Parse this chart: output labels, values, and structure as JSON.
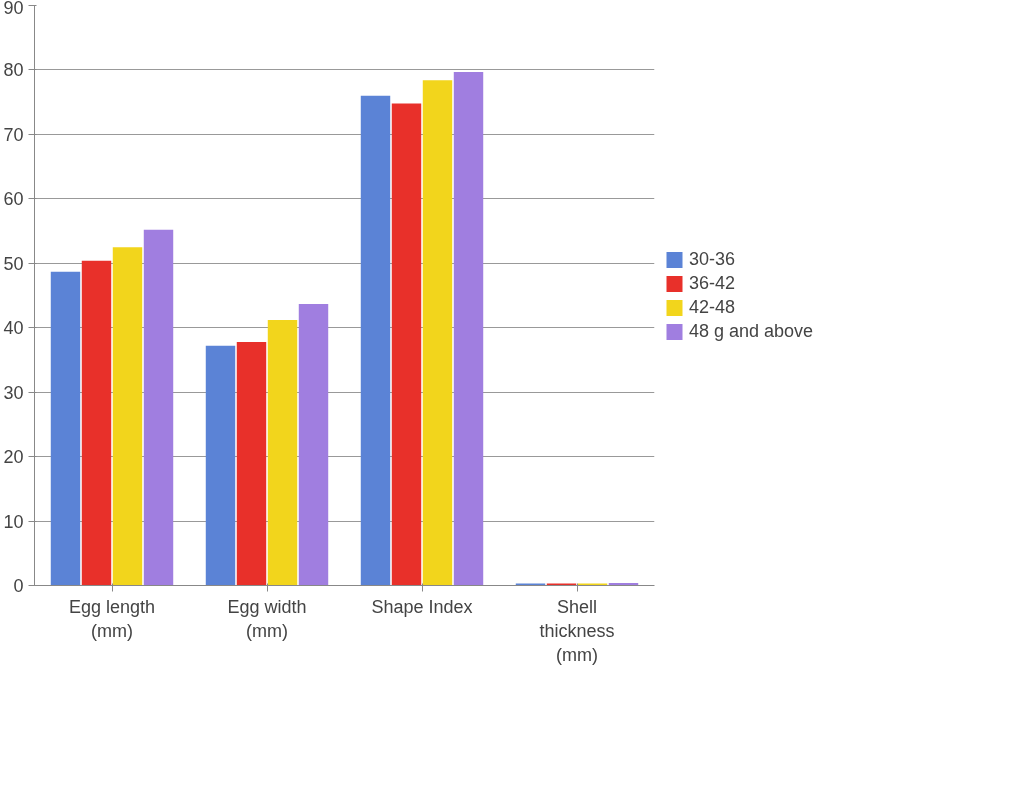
{
  "chart_data": {
    "type": "bar",
    "categories": [
      "Egg length (mm)",
      "Egg width (mm)",
      "Shape Index",
      "Shell thickness (mm)"
    ],
    "series": [
      {
        "name": "30-36",
        "color": "#5b83d6",
        "values": [
          48.7,
          37.2,
          76.0,
          0.3
        ]
      },
      {
        "name": "36-42",
        "color": "#e8302a",
        "values": [
          50.4,
          37.8,
          74.8,
          0.3
        ]
      },
      {
        "name": "42-48",
        "color": "#f2d51c",
        "values": [
          52.5,
          41.2,
          78.4,
          0.3
        ]
      },
      {
        "name": "48 g and above",
        "color": "#a07ee0",
        "values": [
          55.2,
          43.7,
          79.7,
          0.4
        ]
      }
    ],
    "ylim": [
      0,
      90
    ],
    "yticks": [
      0,
      10,
      20,
      30,
      40,
      50,
      60,
      70,
      80,
      90
    ],
    "grid": "y",
    "legend": "right"
  }
}
